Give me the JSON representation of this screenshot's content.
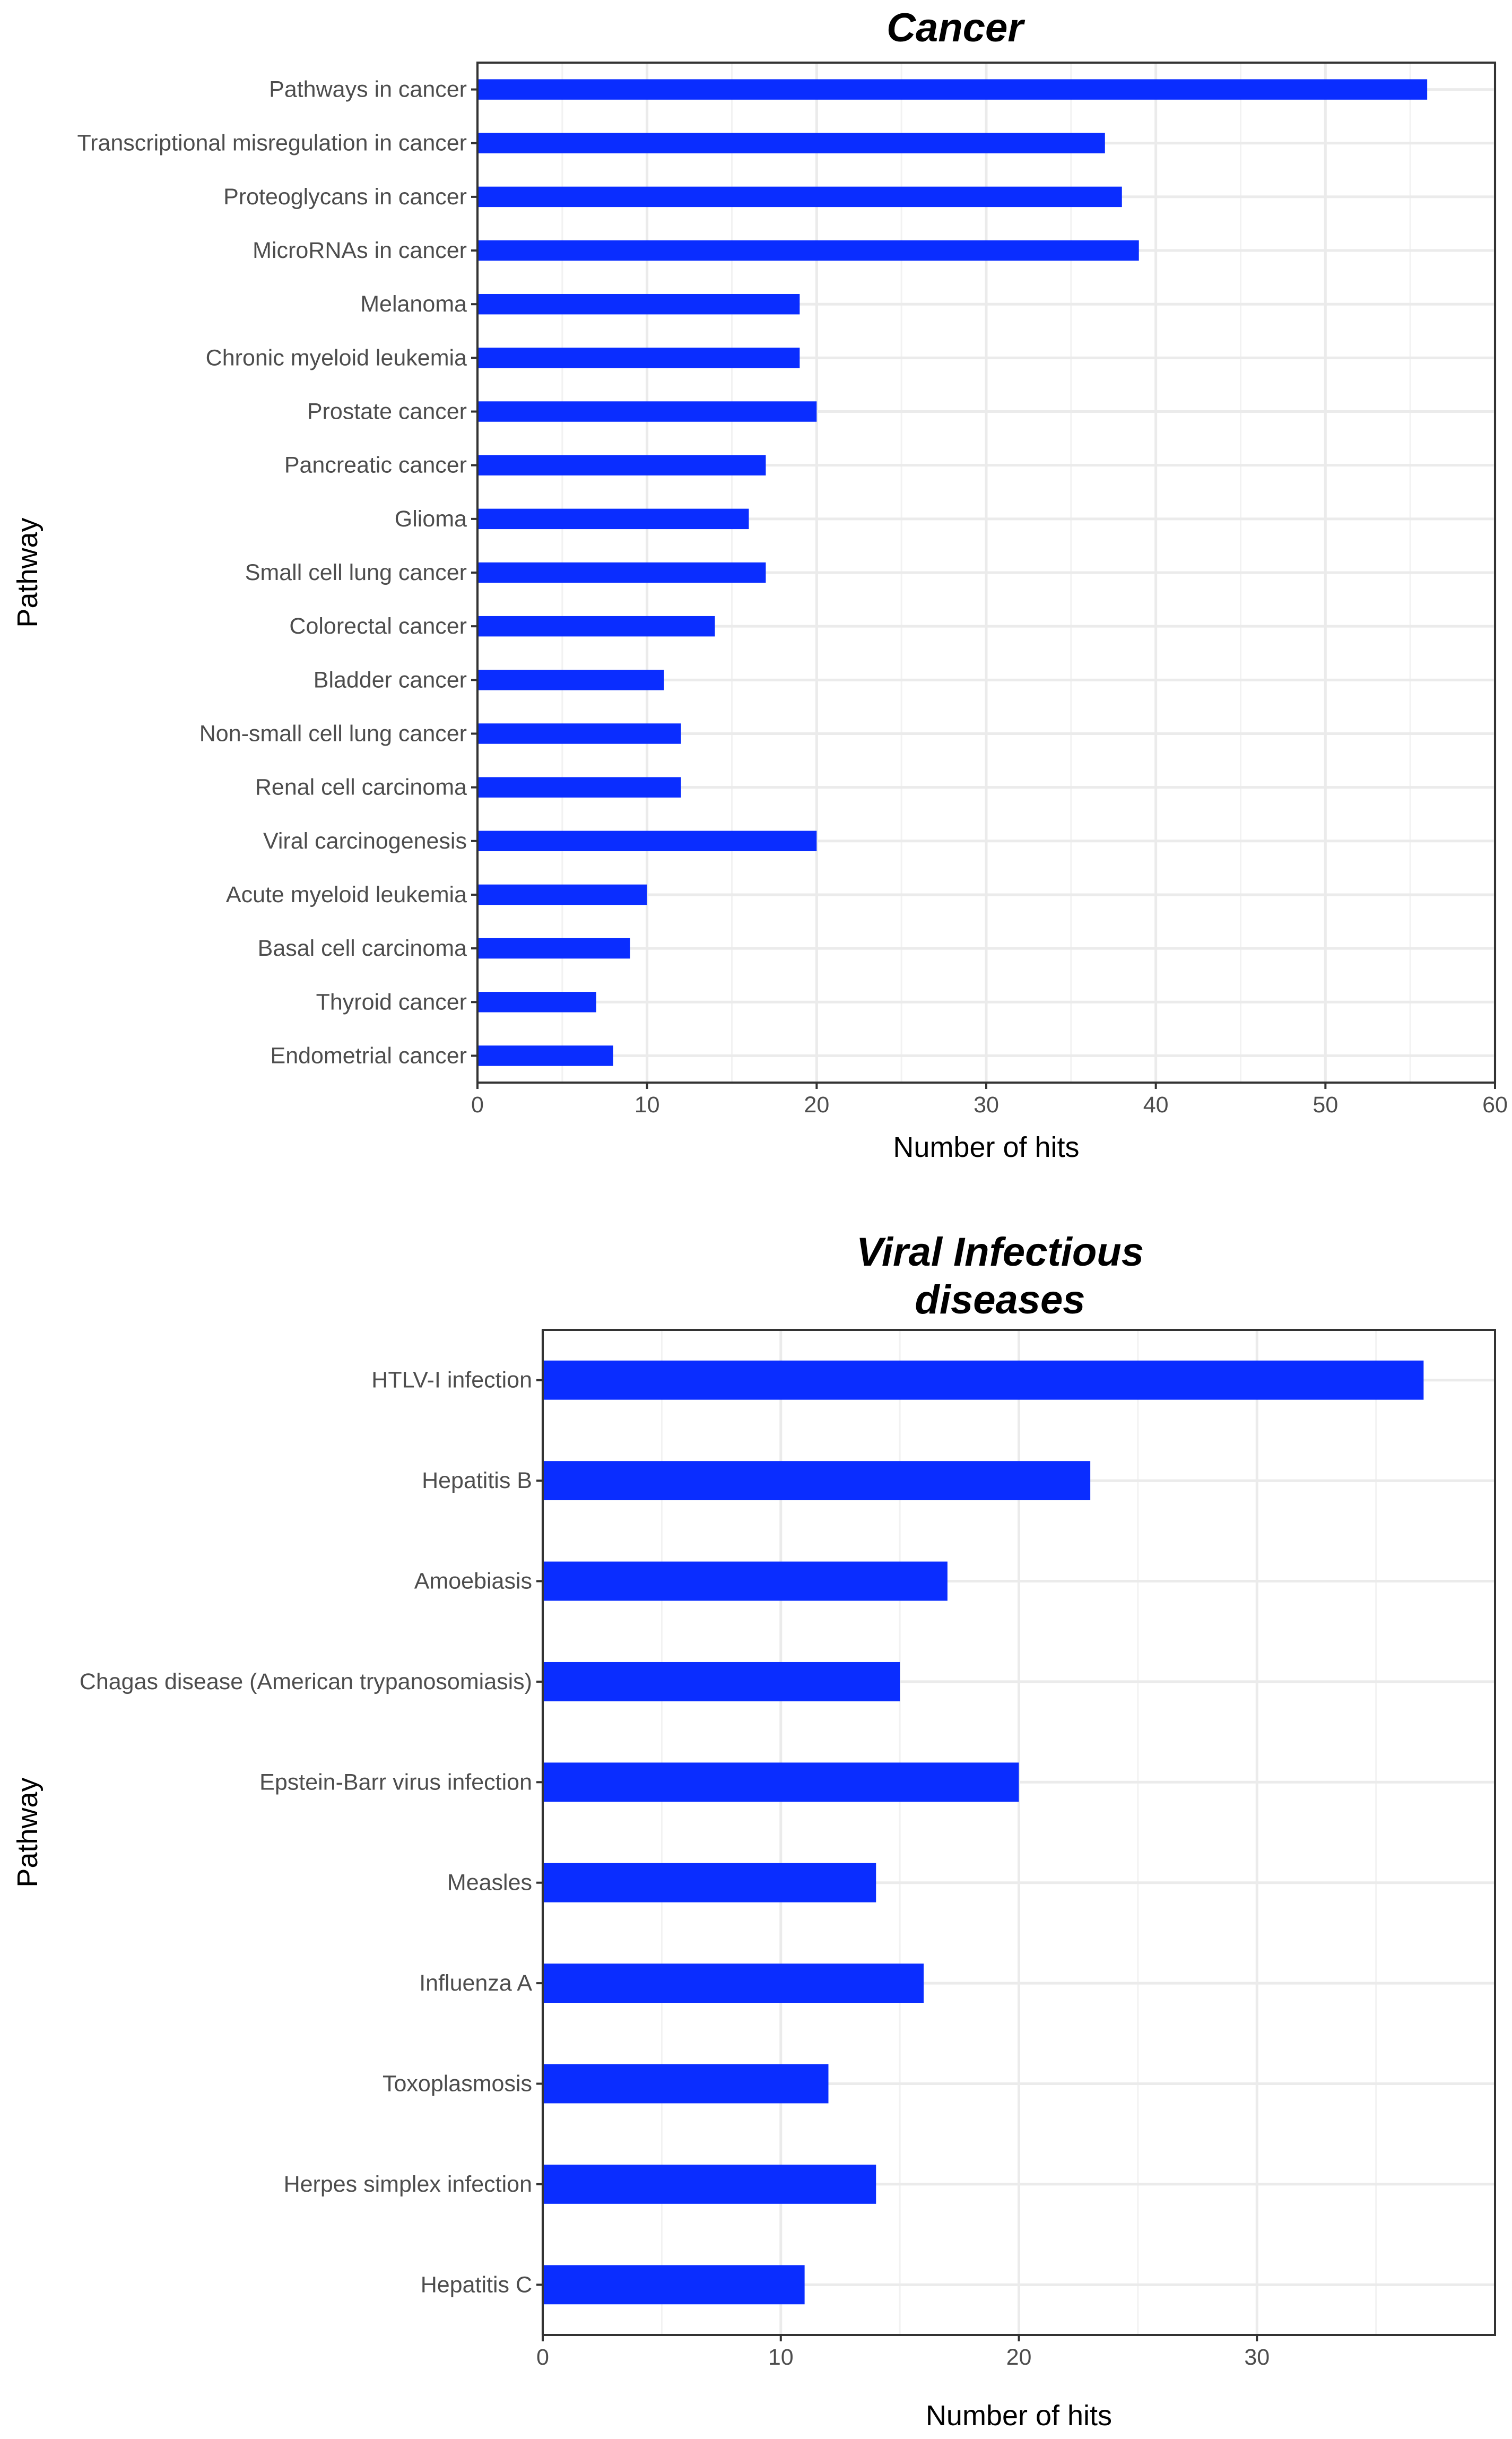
{
  "chart_data": [
    {
      "type": "bar",
      "orientation": "horizontal",
      "title": "Cancer",
      "xlabel": "Number of hits",
      "ylabel": "Pathway",
      "xlim": [
        0,
        60
      ],
      "xticks": [
        0,
        10,
        20,
        30,
        40,
        50,
        60
      ],
      "grid": true,
      "bar_color": "#0a2dff",
      "categories": [
        "Pathways in cancer",
        "Transcriptional misregulation in cancer",
        "Proteoglycans in cancer",
        "MicroRNAs in cancer",
        "Melanoma",
        "Chronic myeloid leukemia",
        "Prostate cancer",
        "Pancreatic cancer",
        "Glioma",
        "Small cell lung cancer",
        "Colorectal cancer",
        "Bladder cancer",
        "Non-small cell lung cancer",
        "Renal cell carcinoma",
        "Viral carcinogenesis",
        "Acute myeloid leukemia",
        "Basal cell carcinoma",
        "Thyroid cancer",
        "Endometrial cancer"
      ],
      "values": [
        56,
        37,
        38,
        39,
        19,
        19,
        20,
        17,
        16,
        17,
        14,
        11,
        12,
        12,
        20,
        10,
        9,
        7,
        8
      ]
    },
    {
      "type": "bar",
      "orientation": "horizontal",
      "title": [
        "Viral Infectious",
        "diseases"
      ],
      "xlabel": "Number of hits",
      "ylabel": "Pathway",
      "xlim": [
        0,
        40
      ],
      "xticks": [
        0,
        10,
        20,
        30
      ],
      "grid": true,
      "bar_color": "#0a2dff",
      "categories": [
        "HTLV-I infection",
        "Hepatitis B",
        "Amoebiasis",
        "Chagas disease (American trypanosomiasis)",
        "Epstein-Barr virus infection",
        "Measles",
        "Influenza A",
        "Toxoplasmosis",
        "Herpes simplex infection",
        "Hepatitis C"
      ],
      "values": [
        37,
        23,
        17,
        15,
        20,
        14,
        16,
        12,
        14,
        11
      ]
    }
  ]
}
